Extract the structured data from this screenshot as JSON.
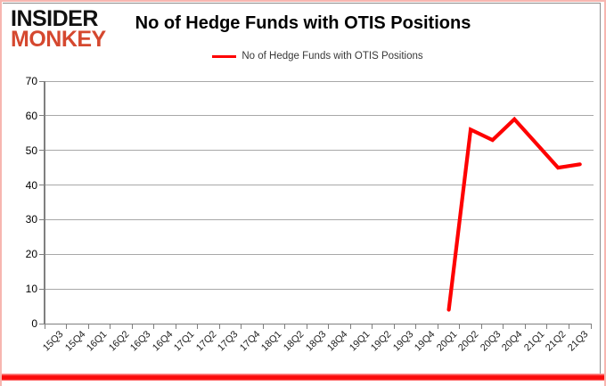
{
  "logo": {
    "line1": "INSIDER",
    "line2": "MONKEY"
  },
  "chart": {
    "title": "No of Hedge Funds with OTIS Positions",
    "legend_label": "No of Hedge Funds with OTIS Positions"
  },
  "colors": {
    "series_line": "#fe0000",
    "legend_swatch": "#fe0000",
    "logo_monkey": "#d5482f",
    "logo_insider": "#111111",
    "gridline": "#a8a8a8",
    "axis": "#7f7f7f",
    "frame_pink_border": "#f7b6b0",
    "bottom_red_bar": "#fb0b0b"
  },
  "chart_data": {
    "type": "line",
    "title": "No of Hedge Funds with OTIS Positions",
    "categories": [
      "15Q3",
      "15Q4",
      "16Q1",
      "16Q2",
      "16Q3",
      "16Q4",
      "17Q1",
      "17Q2",
      "17Q3",
      "17Q4",
      "18Q1",
      "18Q2",
      "18Q3",
      "18Q4",
      "19Q1",
      "19Q2",
      "19Q3",
      "19Q4",
      "20Q1",
      "20Q2",
      "20Q3",
      "20Q4",
      "21Q1",
      "21Q2",
      "21Q3"
    ],
    "series": [
      {
        "name": "No of Hedge Funds with OTIS Positions",
        "values": [
          null,
          null,
          null,
          null,
          null,
          null,
          null,
          null,
          null,
          null,
          null,
          null,
          null,
          null,
          null,
          null,
          null,
          null,
          4,
          56,
          53,
          59,
          52,
          45,
          46
        ]
      }
    ],
    "xlabel": "",
    "ylabel": "",
    "ylim": [
      0,
      70
    ],
    "y_ticks": [
      0,
      10,
      20,
      30,
      40,
      50,
      60,
      70
    ],
    "grid": "horizontal",
    "legend_position": "top-center",
    "line_color": "#fe0000"
  }
}
